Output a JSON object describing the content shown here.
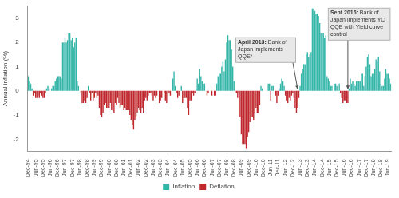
{
  "chart_data": {
    "type": "bar",
    "y_label": "Annual inflation (%)",
    "categories": [
      "Dec-94",
      null,
      null,
      null,
      null,
      null,
      "Jun-95",
      null,
      null,
      null,
      null,
      null,
      "Dec-95",
      null,
      null,
      null,
      null,
      null,
      "Jun-96",
      null,
      null,
      null,
      null,
      null,
      "Dec-96",
      null,
      null,
      null,
      null,
      null,
      "Jun-97",
      null,
      null,
      null,
      null,
      null,
      "Dec-97",
      null,
      null,
      null,
      null,
      null,
      "Jun-98",
      null,
      null,
      null,
      null,
      null,
      "Dec-98",
      null,
      null,
      null,
      null,
      null,
      "Jun-99",
      null,
      null,
      null,
      null,
      null,
      "Dec-99",
      null,
      null,
      null,
      null,
      null,
      "Jun-00",
      null,
      null,
      null,
      null,
      null,
      "Dec-00",
      null,
      null,
      null,
      null,
      null,
      "Jun-01",
      null,
      null,
      null,
      null,
      null,
      "Dec-01",
      null,
      null,
      null,
      null,
      null,
      "Jun-02",
      null,
      null,
      null,
      null,
      null,
      "Dec-02",
      null,
      null,
      null,
      null,
      null,
      "Jun-03",
      null,
      null,
      null,
      null,
      null,
      "Dec-03",
      null,
      null,
      null,
      null,
      null,
      "Jun-04",
      null,
      null,
      null,
      null,
      null,
      "Dec-04",
      null,
      null,
      null,
      null,
      null,
      "Jun-05",
      null,
      null,
      null,
      null,
      null,
      "Dec-05",
      null,
      null,
      null,
      null,
      null,
      "Jun-06",
      null,
      null,
      null,
      null,
      null,
      "Dec-06",
      null,
      null,
      null,
      null,
      null,
      "Jun-07",
      null,
      null,
      null,
      null,
      null,
      "Dec-07",
      null,
      null,
      null,
      null,
      null,
      "Jun-08",
      null,
      null,
      null,
      null,
      null,
      "Dec-08",
      null,
      null,
      null,
      null,
      null,
      "Jun-09",
      null,
      null,
      null,
      null,
      null,
      "Dec-09",
      null,
      null,
      null,
      null,
      null,
      "Jun-10",
      null,
      null,
      null,
      null,
      null,
      "Dec-10",
      null,
      null,
      null,
      null,
      null,
      "Jun-11",
      null,
      null,
      null,
      null,
      null,
      "Dec-11",
      null,
      null,
      null,
      null,
      null,
      "Jun-12",
      null,
      null,
      null,
      null,
      null,
      "Dec-12",
      null,
      null,
      null,
      null,
      null,
      "Jun-13",
      null,
      null,
      null,
      null,
      null,
      "Dec-13",
      null,
      null,
      null,
      null,
      null,
      "Jun-14",
      null,
      null,
      null,
      null,
      null,
      "Dec-14",
      null,
      null,
      null,
      null,
      null,
      "Jun-15",
      null,
      null,
      null,
      null,
      null,
      "Dec-15",
      null,
      null,
      null,
      null,
      null,
      "Jun-16",
      null,
      null,
      null,
      null,
      null,
      "Dec-16",
      null,
      null,
      null,
      null,
      null,
      "Jun-17",
      null,
      null,
      null,
      null,
      null,
      "Dec-17",
      null,
      null,
      null,
      null,
      null,
      "Jun-18",
      null,
      null,
      null,
      null,
      null,
      "Dec-18",
      null,
      null,
      null,
      null,
      null,
      "Jun-19",
      null,
      null
    ],
    "series": [
      {
        "name": "Inflation",
        "color": "#33b5a8",
        "values": [
          0.6,
          0.4,
          0.3,
          0.1,
          null,
          null,
          null,
          null,
          null,
          null,
          null,
          null,
          null,
          null,
          null,
          0.1,
          0.2,
          0.1,
          0,
          0.1,
          0.2,
          0.2,
          0.4,
          0.5,
          0.6,
          0.6,
          0.6,
          0.5,
          2.0,
          2.0,
          2.2,
          2.0,
          2.1,
          2.4,
          2.4,
          2.1,
          2.2,
          1.8,
          2.0,
          2.2,
          0.4,
          0.2,
          0,
          null,
          null,
          null,
          null,
          null,
          null,
          0.2,
          null,
          null,
          null,
          null,
          null,
          null,
          null,
          null,
          null,
          null,
          null,
          null,
          null,
          null,
          null,
          null,
          null,
          null,
          null,
          null,
          null,
          null,
          null,
          null,
          null,
          null,
          null,
          null,
          null,
          null,
          null,
          null,
          null,
          null,
          null,
          null,
          null,
          null,
          null,
          null,
          null,
          null,
          null,
          null,
          null,
          null,
          null,
          null,
          null,
          null,
          null,
          null,
          null,
          null,
          null,
          null,
          0,
          null,
          null,
          null,
          0,
          null,
          null,
          null,
          0,
          null,
          null,
          0,
          0.5,
          0.8,
          0.2,
          null,
          null,
          null,
          0,
          0.2,
          null,
          null,
          null,
          null,
          null,
          null,
          null,
          null,
          null,
          null,
          null,
          0.1,
          0.5,
          0.3,
          0.9,
          0.6,
          0.4,
          0.3,
          0.3,
          0,
          null,
          null,
          0,
          0,
          null,
          0,
          null,
          null,
          0.3,
          0.6,
          0.7,
          0.7,
          1.0,
          1.2,
          0.8,
          1.3,
          2.0,
          2.3,
          2.1,
          2.1,
          1.7,
          1.0,
          0.4,
          0,
          null,
          null,
          null,
          null,
          null,
          null,
          null,
          null,
          null,
          null,
          null,
          null,
          null,
          null,
          null,
          null,
          null,
          null,
          null,
          null,
          0.2,
          0.1,
          0,
          0,
          0,
          0,
          0.3,
          0.3,
          null,
          0.2,
          0.2,
          0,
          null,
          null,
          null,
          0.1,
          0.3,
          0.5,
          0.4,
          0.2,
          null,
          null,
          null,
          null,
          null,
          null,
          null,
          null,
          null,
          null,
          null,
          null,
          0.2,
          0.7,
          0.9,
          1.1,
          1.1,
          1.5,
          1.6,
          1.4,
          1.5,
          1.6,
          3.4,
          3.4,
          3.3,
          3.2,
          3.2,
          3.1,
          2.8,
          2.4,
          2.4,
          2.4,
          2.2,
          2.3,
          0.6,
          0.5,
          0.4,
          0.2,
          0.2,
          0,
          0.3,
          0.3,
          0.2,
          0,
          0.3,
          null,
          null,
          null,
          null,
          null,
          null,
          null,
          0.1,
          0.5,
          0.3,
          0.4,
          0.3,
          0.2,
          0.4,
          0.4,
          0.4,
          0.4,
          0.7,
          0.7,
          0.2,
          0.6,
          1.0,
          1.4,
          1.5,
          1.1,
          0.6,
          0.7,
          0.7,
          0.9,
          1.3,
          1.2,
          1.4,
          0.8,
          0.3,
          0.2,
          0.2,
          0.5,
          0.9,
          0.7,
          0.7,
          0.5,
          0.3
        ]
      },
      {
        "name": "Deflation",
        "color": "#c0272d",
        "values": [
          null,
          null,
          null,
          null,
          -0.2,
          -0.1,
          -0.3,
          -0.3,
          -0.2,
          -0.3,
          -0.1,
          -0.2,
          -0.3,
          -0.3,
          -0.1,
          null,
          null,
          null,
          null,
          null,
          null,
          null,
          null,
          null,
          null,
          null,
          null,
          null,
          null,
          null,
          null,
          null,
          null,
          null,
          null,
          null,
          null,
          null,
          null,
          null,
          null,
          null,
          null,
          -0.1,
          -0.5,
          -0.5,
          -0.4,
          -0.5,
          -0.3,
          null,
          -0.1,
          -0.4,
          -0.1,
          -0.4,
          -0.3,
          -0.1,
          -0.3,
          -0.2,
          -0.7,
          -1.0,
          -1.1,
          -0.9,
          -0.6,
          -0.5,
          -0.7,
          -0.7,
          -0.7,
          -0.5,
          -0.8,
          -0.8,
          -0.9,
          -0.5,
          -0.6,
          -0.3,
          -0.5,
          -0.7,
          -0.6,
          -0.6,
          -0.8,
          -0.7,
          -0.8,
          -0.8,
          -0.8,
          -1.0,
          -1.2,
          -1.4,
          -1.6,
          -1.2,
          -1.1,
          -0.9,
          -0.7,
          -0.8,
          -0.9,
          -0.7,
          -0.9,
          -0.4,
          -0.3,
          -0.4,
          -0.2,
          -0.1,
          -0.1,
          -0.2,
          -0.4,
          -0.2,
          -0.3,
          -0.2,
          null,
          -0.5,
          -0.4,
          -0.3,
          null,
          -0.1,
          -0.4,
          -0.5,
          null,
          -0.1,
          -0.2,
          null,
          null,
          null,
          null,
          -0.1,
          -0.3,
          -0.2,
          null,
          null,
          -0.5,
          -0.3,
          -0.3,
          -0.3,
          -0.7,
          -1.0,
          -0.4,
          -0.4,
          -0.1,
          -0.2,
          -0.1,
          null,
          null,
          null,
          null,
          null,
          null,
          null,
          null,
          null,
          -0.2,
          -0.1,
          null,
          null,
          -0.2,
          null,
          -0.2,
          -0.2,
          null,
          null,
          null,
          null,
          null,
          null,
          null,
          null,
          null,
          null,
          null,
          null,
          null,
          null,
          null,
          null,
          -0.1,
          -0.3,
          -0.1,
          -1.1,
          -1.8,
          -2.2,
          -2.2,
          -2.2,
          -2.4,
          -1.9,
          -1.7,
          -1.3,
          -1.1,
          -1.1,
          -1.2,
          -0.9,
          -0.7,
          -0.9,
          -0.9,
          -0.6,
          null,
          null,
          null,
          null,
          null,
          null,
          null,
          null,
          -0.4,
          null,
          null,
          null,
          -0.2,
          -0.5,
          -0.2,
          null,
          null,
          null,
          null,
          null,
          -0.2,
          -0.4,
          -0.5,
          -0.3,
          -0.4,
          -0.2,
          -0.1,
          -0.3,
          -0.7,
          -0.9,
          -0.7,
          -0.3,
          null,
          null,
          null,
          null,
          null,
          null,
          null,
          null,
          null,
          null,
          null,
          null,
          null,
          null,
          null,
          null,
          null,
          null,
          null,
          null,
          null,
          null,
          null,
          null,
          null,
          null,
          null,
          null,
          null,
          null,
          null,
          null,
          null,
          -0.1,
          -0.3,
          -0.5,
          -0.4,
          -0.4,
          -0.5,
          -0.5,
          null,
          null,
          null,
          null,
          null,
          null,
          null,
          null,
          null,
          null,
          null,
          null,
          null,
          null,
          null,
          null,
          null,
          null,
          null,
          null,
          null,
          null,
          null,
          null,
          null,
          null,
          null,
          null,
          null,
          null,
          null,
          null,
          null,
          null,
          null
        ]
      }
    ],
    "ylim": [
      -2.5,
      3.5
    ],
    "yticks": [
      -2,
      -1,
      0,
      1,
      2,
      3
    ],
    "grid": false,
    "legend": "bottom",
    "stacked": true,
    "annotations": [
      {
        "bold": "April 2013:",
        "text": "Bank of Japan implements QQE*",
        "x": 220,
        "y": 0
      },
      {
        "bold": "Sept 2016:",
        "text": "Bank of Japan implements YC QQE with Yield curve control",
        "x": 261,
        "y": 0
      }
    ]
  }
}
